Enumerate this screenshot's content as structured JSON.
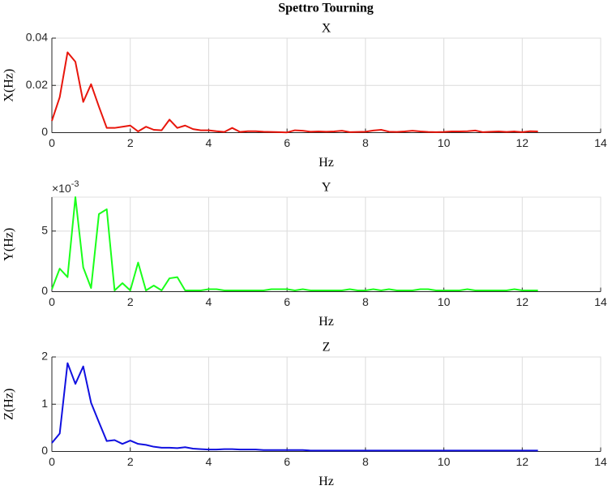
{
  "title": "Spettro Tourning",
  "chart_data": [
    {
      "type": "line",
      "title": "X",
      "xlabel": "Hz",
      "ylabel": "X(Hz)",
      "color": "#e8160c",
      "grid": true,
      "xlim": [
        0,
        14
      ],
      "xticks": [
        0,
        2,
        4,
        6,
        8,
        10,
        12,
        14
      ],
      "ylim": [
        0,
        0.04
      ],
      "yticks": [
        0,
        0.02,
        0.04
      ],
      "x": [
        0,
        0.2,
        0.4,
        0.6,
        0.8,
        1,
        1.2,
        1.4,
        1.6,
        1.8,
        2,
        2.2,
        2.4,
        2.6,
        2.8,
        3,
        3.2,
        3.4,
        3.6,
        3.8,
        4,
        4.2,
        4.4,
        4.6,
        4.8,
        5,
        5.2,
        5.4,
        5.6,
        5.8,
        6,
        6.2,
        6.4,
        6.6,
        6.8,
        7,
        7.2,
        7.4,
        7.6,
        7.8,
        8,
        8.2,
        8.4,
        8.6,
        8.8,
        9,
        9.2,
        9.4,
        9.6,
        9.8,
        10,
        10.2,
        10.4,
        10.6,
        10.8,
        11,
        11.2,
        11.4,
        11.6,
        11.8,
        12,
        12.2,
        12.4
      ],
      "values": [
        0.005,
        0.015,
        0.034,
        0.03,
        0.013,
        0.0205,
        0.011,
        0.002,
        0.002,
        0.0025,
        0.003,
        0.0005,
        0.0025,
        0.0012,
        0.001,
        0.0055,
        0.002,
        0.003,
        0.0015,
        0.001,
        0.001,
        0.0006,
        0.0003,
        0.002,
        0.0003,
        0.0006,
        0.0006,
        0.0004,
        0.0003,
        0.0002,
        0.0001,
        0.001,
        0.0008,
        0.0004,
        0.0005,
        0.0004,
        0.0005,
        0.0008,
        0.0002,
        0.0003,
        0.0004,
        0.0009,
        0.0012,
        0.0004,
        0.0003,
        0.0005,
        0.0008,
        0.0005,
        0.0003,
        0.0002,
        0.0003,
        0.0005,
        0.0005,
        0.0006,
        0.0009,
        0.0002,
        0.0004,
        0.0005,
        0.0003,
        0.0005,
        0.0002,
        0.0006,
        0.0005
      ]
    },
    {
      "type": "line",
      "title": "Y",
      "xlabel": "Hz",
      "ylabel": "Y(Hz)",
      "color": "#1aff1a",
      "grid": true,
      "y_multiplier": {
        "base": "×10",
        "exponent": "-3"
      },
      "xlim": [
        0,
        14
      ],
      "xticks": [
        0,
        2,
        4,
        6,
        8,
        10,
        12,
        14
      ],
      "ylim": [
        0,
        0.0078
      ],
      "yticks": [
        0,
        {
          "value": 0.005,
          "label": "5"
        }
      ],
      "x": [
        0,
        0.2,
        0.4,
        0.6,
        0.8,
        1,
        1.2,
        1.4,
        1.6,
        1.8,
        2,
        2.2,
        2.4,
        2.6,
        2.8,
        3,
        3.2,
        3.4,
        3.6,
        3.8,
        4,
        4.2,
        4.4,
        4.6,
        4.8,
        5,
        5.2,
        5.4,
        5.6,
        5.8,
        6,
        6.2,
        6.4,
        6.6,
        6.8,
        7,
        7.2,
        7.4,
        7.6,
        7.8,
        8,
        8.2,
        8.4,
        8.6,
        8.8,
        9,
        9.2,
        9.4,
        9.6,
        9.8,
        10,
        10.2,
        10.4,
        10.6,
        10.8,
        11,
        11.2,
        11.4,
        11.6,
        11.8,
        12,
        12.2,
        12.4
      ],
      "values": [
        0.0002,
        0.0019,
        0.0012,
        0.0078,
        0.002,
        0.0003,
        0.0064,
        0.0068,
        0.0001,
        0.0007,
        0.0001,
        0.0024,
        0.0001,
        0.0005,
        0.0001,
        0.0011,
        0.0012,
        0.0001,
        0.0001,
        0.0001,
        0.0002,
        0.0002,
        0.0001,
        0.0001,
        0.0001,
        0.0001,
        0.0001,
        0.0001,
        0.0002,
        0.0002,
        0.0002,
        0.0001,
        0.0002,
        0.0001,
        0.0001,
        0.0001,
        0.0001,
        0.0001,
        0.0002,
        0.0001,
        0.0001,
        0.0002,
        0.0001,
        0.0002,
        0.0001,
        0.0001,
        0.0001,
        0.0002,
        0.0002,
        0.0001,
        0.0001,
        0.0001,
        0.0001,
        0.0002,
        0.0001,
        0.0001,
        0.0001,
        0.0001,
        0.0001,
        0.0002,
        0.0001,
        0.0001,
        0.0001
      ]
    },
    {
      "type": "line",
      "title": "Z",
      "xlabel": "Hz",
      "ylabel": "Z(Hz)",
      "color": "#1010e0",
      "grid": true,
      "xlim": [
        0,
        14
      ],
      "xticks": [
        0,
        2,
        4,
        6,
        8,
        10,
        12,
        14
      ],
      "ylim": [
        0,
        2
      ],
      "yticks": [
        0,
        1,
        2
      ],
      "x": [
        0,
        0.2,
        0.4,
        0.6,
        0.8,
        1,
        1.2,
        1.4,
        1.6,
        1.8,
        2,
        2.2,
        2.4,
        2.6,
        2.8,
        3,
        3.2,
        3.4,
        3.6,
        3.8,
        4,
        4.2,
        4.4,
        4.6,
        4.8,
        5,
        5.2,
        5.4,
        5.6,
        5.8,
        6,
        6.2,
        6.4,
        6.6,
        6.8,
        7,
        7.2,
        7.4,
        7.6,
        7.8,
        8,
        8.2,
        8.4,
        8.6,
        8.8,
        9,
        9.2,
        9.4,
        9.6,
        9.8,
        10,
        10.2,
        10.4,
        10.6,
        10.8,
        11,
        11.2,
        11.4,
        11.6,
        11.8,
        12,
        12.2,
        12.4
      ],
      "values": [
        0.18,
        0.38,
        1.87,
        1.43,
        1.8,
        1.03,
        0.62,
        0.22,
        0.24,
        0.16,
        0.23,
        0.16,
        0.14,
        0.1,
        0.08,
        0.08,
        0.07,
        0.09,
        0.06,
        0.05,
        0.04,
        0.04,
        0.05,
        0.05,
        0.04,
        0.04,
        0.04,
        0.03,
        0.03,
        0.03,
        0.03,
        0.03,
        0.03,
        0.02,
        0.02,
        0.02,
        0.02,
        0.02,
        0.02,
        0.02,
        0.02,
        0.02,
        0.02,
        0.02,
        0.02,
        0.02,
        0.02,
        0.02,
        0.02,
        0.02,
        0.02,
        0.02,
        0.02,
        0.02,
        0.02,
        0.02,
        0.02,
        0.02,
        0.02,
        0.02,
        0.02,
        0.02,
        0.02
      ]
    }
  ]
}
